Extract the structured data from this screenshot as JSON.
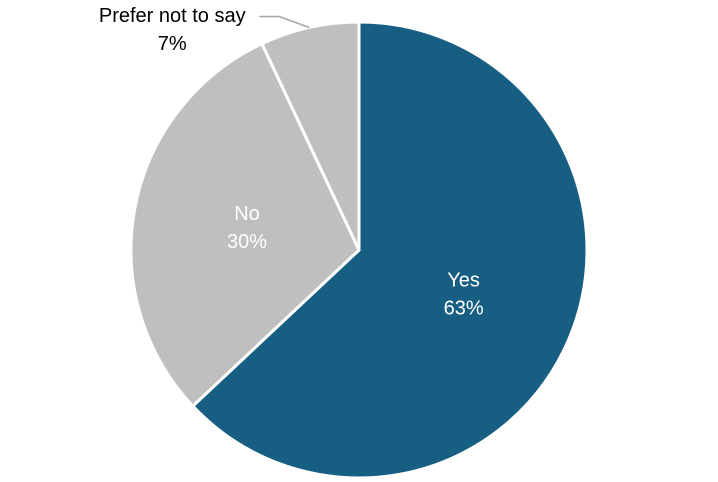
{
  "chart_data": {
    "type": "pie",
    "categories": [
      "Yes",
      "No",
      "Prefer not to say"
    ],
    "values": [
      63,
      30,
      7
    ],
    "value_labels": [
      "63%",
      "30%",
      "7%"
    ],
    "colors": [
      "#175f82",
      "#bfbfbf",
      "#bfbfbf"
    ]
  }
}
